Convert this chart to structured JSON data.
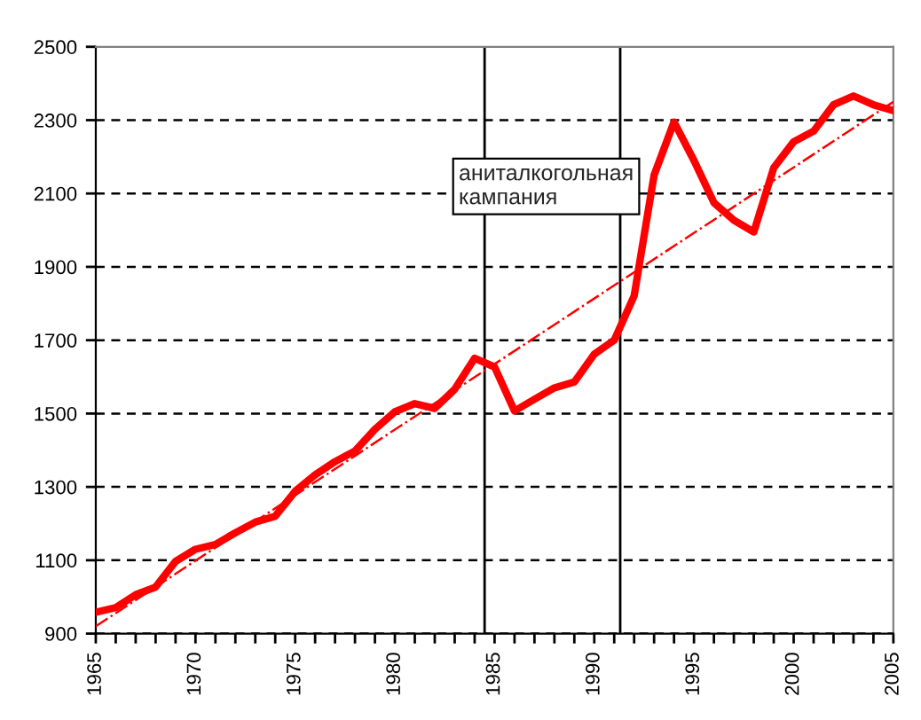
{
  "chart_data": {
    "type": "line",
    "x": [
      1965,
      1966,
      1967,
      1968,
      1969,
      1970,
      1971,
      1972,
      1973,
      1974,
      1975,
      1976,
      1977,
      1978,
      1979,
      1980,
      1981,
      1982,
      1983,
      1984,
      1985,
      1986,
      1987,
      1988,
      1989,
      1990,
      1991,
      1992,
      1993,
      1994,
      1995,
      1996,
      1997,
      1998,
      1999,
      2000,
      2001,
      2002,
      2003,
      2004,
      2005
    ],
    "series": [
      {
        "color": "#ff0000",
        "line_style": "solid",
        "values": [
          958,
          971,
          1006,
          1027,
          1097,
          1130,
          1143,
          1175,
          1204,
          1220,
          1288,
          1333,
          1369,
          1398,
          1457,
          1505,
          1527,
          1514,
          1566,
          1651,
          1627,
          1507,
          1539,
          1570,
          1586,
          1662,
          1700,
          1821,
          2150,
          2295,
          2190,
          2075,
          2027,
          1995,
          2170,
          2241,
          2270,
          2342,
          2366,
          2342,
          2326
        ]
      },
      {
        "type": "line",
        "color": "#ff0000",
        "line_style": "dashdot",
        "x": [
          1965,
          2005
        ],
        "values": [
          920,
          2350
        ]
      }
    ],
    "xlim": [
      1965,
      2005
    ],
    "xticks": [
      1965,
      {
        "value": 1966,
        "label": null
      },
      {
        "value": 1967,
        "label": null
      },
      {
        "value": 1968,
        "label": null
      },
      {
        "value": 1969,
        "label": null
      },
      1970,
      {
        "value": 1971,
        "label": null
      },
      {
        "value": 1972,
        "label": null
      },
      {
        "value": 1973,
        "label": null
      },
      {
        "value": 1974,
        "label": null
      },
      1975,
      {
        "value": 1976,
        "label": null
      },
      {
        "value": 1977,
        "label": null
      },
      {
        "value": 1978,
        "label": null
      },
      {
        "value": 1979,
        "label": null
      },
      1980,
      {
        "value": 1981,
        "label": null
      },
      {
        "value": 1982,
        "label": null
      },
      {
        "value": 1983,
        "label": null
      },
      {
        "value": 1984,
        "label": null
      },
      1985,
      {
        "value": 1986,
        "label": null
      },
      {
        "value": 1987,
        "label": null
      },
      {
        "value": 1988,
        "label": null
      },
      {
        "value": 1989,
        "label": null
      },
      1990,
      {
        "value": 1991,
        "label": null
      },
      {
        "value": 1992,
        "label": null
      },
      {
        "value": 1993,
        "label": null
      },
      {
        "value": 1994,
        "label": null
      },
      1995,
      {
        "value": 1996,
        "label": null
      },
      {
        "value": 1997,
        "label": null
      },
      {
        "value": 1998,
        "label": null
      },
      {
        "value": 1999,
        "label": null
      },
      2000,
      {
        "value": 2001,
        "label": null
      },
      {
        "value": 2002,
        "label": null
      },
      {
        "value": 2003,
        "label": null
      },
      {
        "value": 2004,
        "label": null
      },
      2005
    ],
    "ylim": [
      900,
      2500
    ],
    "yticks": [
      900,
      1100,
      1300,
      1500,
      1700,
      1900,
      2100,
      2300,
      2500
    ],
    "grid": "y",
    "ref_lines": [
      {
        "axis": "x",
        "value": 1984.5,
        "color": "#000000"
      },
      {
        "axis": "x",
        "value": 1991.3,
        "color": "#000000"
      }
    ],
    "annotations": [
      "аниталкогольная\nкампания"
    ]
  }
}
